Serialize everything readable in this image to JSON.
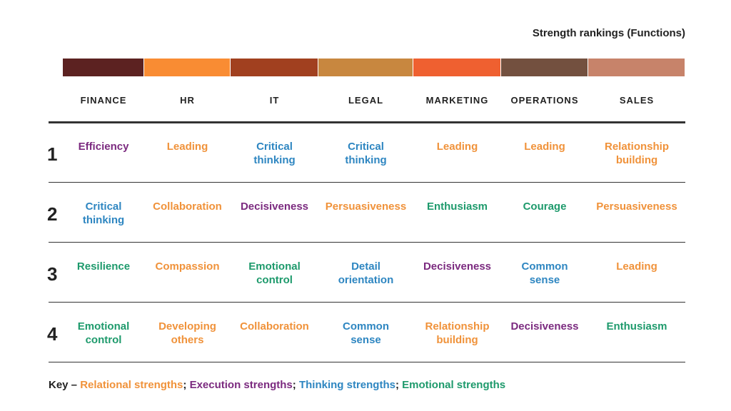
{
  "title": "Strength rankings (Functions)",
  "columns": [
    {
      "name": "FINANCE",
      "color": "#5c2221"
    },
    {
      "name": "HR",
      "color": "#f98c33"
    },
    {
      "name": "IT",
      "color": "#a1401f"
    },
    {
      "name": "LEGAL",
      "color": "#c8873f"
    },
    {
      "name": "MARKETING",
      "color": "#ef6030"
    },
    {
      "name": "OPERATIONS",
      "color": "#73503f"
    },
    {
      "name": "SALES",
      "color": "#c7836a"
    }
  ],
  "rows": [
    {
      "rank": 1,
      "cells": [
        {
          "text": "Efficiency",
          "kind": "Execution strengths"
        },
        {
          "text": "Leading",
          "kind": "Relational strengths"
        },
        {
          "text": "Critical\nthinking",
          "kind": "Thinking strengths"
        },
        {
          "text": "Critical\nthinking",
          "kind": "Thinking strengths"
        },
        {
          "text": "Leading",
          "kind": "Relational strengths"
        },
        {
          "text": "Leading",
          "kind": "Relational strengths"
        },
        {
          "text": "Relationship\nbuilding",
          "kind": "Relational strengths"
        }
      ]
    },
    {
      "rank": 2,
      "cells": [
        {
          "text": "Critical\nthinking",
          "kind": "Thinking strengths"
        },
        {
          "text": "Collaboration",
          "kind": "Relational strengths"
        },
        {
          "text": "Decisiveness",
          "kind": "Execution strengths"
        },
        {
          "text": "Persuasiveness",
          "kind": "Relational strengths"
        },
        {
          "text": "Enthusiasm",
          "kind": "Emotional strengths"
        },
        {
          "text": "Courage",
          "kind": "Emotional strengths"
        },
        {
          "text": "Persuasiveness",
          "kind": "Relational strengths"
        }
      ]
    },
    {
      "rank": 3,
      "cells": [
        {
          "text": "Resilience",
          "kind": "Emotional strengths"
        },
        {
          "text": "Compassion",
          "kind": "Relational strengths"
        },
        {
          "text": "Emotional\ncontrol",
          "kind": "Emotional strengths"
        },
        {
          "text": "Detail\norientation",
          "kind": "Thinking strengths"
        },
        {
          "text": "Decisiveness",
          "kind": "Execution strengths"
        },
        {
          "text": "Common\nsense",
          "kind": "Thinking strengths"
        },
        {
          "text": "Leading",
          "kind": "Relational strengths"
        }
      ]
    },
    {
      "rank": 4,
      "cells": [
        {
          "text": "Emotional\ncontrol",
          "kind": "Emotional strengths"
        },
        {
          "text": "Developing\nothers",
          "kind": "Relational strengths"
        },
        {
          "text": "Collaboration",
          "kind": "Relational strengths"
        },
        {
          "text": "Common\nsense",
          "kind": "Thinking strengths"
        },
        {
          "text": "Relationship\nbuilding",
          "kind": "Relational strengths"
        },
        {
          "text": "Decisiveness",
          "kind": "Execution strengths"
        },
        {
          "text": "Enthusiasm",
          "kind": "Emotional strengths"
        }
      ]
    }
  ],
  "key": {
    "label": "Key –",
    "separator": ";",
    "items": [
      {
        "name": "Relational strengths",
        "color": "#f0923a"
      },
      {
        "name": "Execution strengths",
        "color": "#7b2a7f"
      },
      {
        "name": "Thinking strengths",
        "color": "#2e86c1"
      },
      {
        "name": "Emotional strengths",
        "color": "#1e9a6c"
      }
    ]
  }
}
